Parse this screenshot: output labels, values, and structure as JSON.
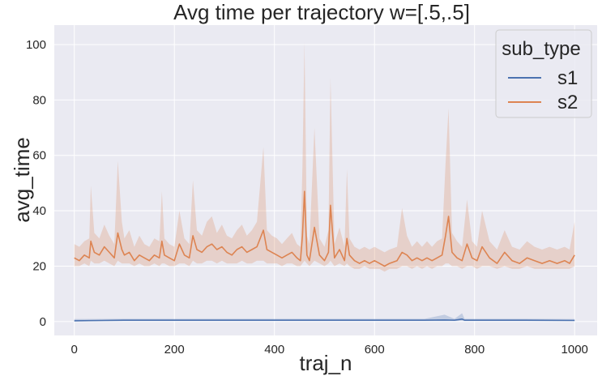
{
  "chart_data": {
    "type": "line",
    "title": "Avg time per trajectory w=[.5,.5]",
    "xlabel": "traj_n",
    "ylabel": "avg_time",
    "xlim": [
      -40,
      1045
    ],
    "ylim": [
      -5,
      107
    ],
    "x_ticks": [
      0,
      200,
      400,
      600,
      800,
      1000
    ],
    "y_ticks": [
      0,
      20,
      40,
      60,
      80,
      100
    ],
    "grid": true,
    "legend": {
      "title": "sub_type",
      "placement": "top-right"
    },
    "series": [
      {
        "name": "s1",
        "color": "#4c72b0",
        "x": [
          0,
          100,
          200,
          300,
          400,
          500,
          600,
          700,
          740,
          760,
          775,
          780,
          800,
          900,
          1000
        ],
        "y": [
          0.3,
          0.5,
          0.5,
          0.5,
          0.5,
          0.5,
          0.5,
          0.5,
          0.6,
          0.5,
          0.9,
          0.5,
          0.5,
          0.5,
          0.4
        ],
        "band_low": [
          0.1,
          0.2,
          0.2,
          0.2,
          0.2,
          0.2,
          0.2,
          0.2,
          0.2,
          0.2,
          0.3,
          0.2,
          0.2,
          0.2,
          0.2
        ],
        "band_high": [
          0.9,
          1.0,
          1.0,
          1.0,
          1.0,
          1.0,
          1.0,
          1.0,
          2.5,
          1.0,
          3.0,
          1.0,
          1.0,
          1.0,
          0.9
        ]
      },
      {
        "name": "s2",
        "color": "#dd8452",
        "x": [
          0,
          10,
          20,
          30,
          33,
          40,
          50,
          60,
          70,
          80,
          87,
          95,
          100,
          110,
          120,
          130,
          140,
          150,
          160,
          170,
          175,
          180,
          190,
          200,
          210,
          220,
          230,
          237,
          245,
          255,
          265,
          275,
          285,
          295,
          305,
          315,
          325,
          335,
          345,
          355,
          365,
          378,
          385,
          395,
          405,
          415,
          425,
          435,
          445,
          452,
          456,
          460,
          465,
          470,
          480,
          490,
          500,
          508,
          512,
          520,
          530,
          540,
          545,
          550,
          560,
          570,
          580,
          590,
          600,
          610,
          620,
          630,
          645,
          655,
          665,
          675,
          685,
          695,
          705,
          715,
          725,
          735,
          742,
          748,
          755,
          765,
          775,
          785,
          795,
          805,
          815,
          830,
          845,
          860,
          875,
          890,
          905,
          920,
          935,
          950,
          965,
          980,
          990,
          1000
        ],
        "y": [
          23,
          22,
          24,
          23,
          29,
          25,
          24,
          27,
          25,
          23,
          32,
          26,
          24,
          25,
          22,
          24,
          23,
          22,
          24,
          23,
          29,
          24,
          23,
          22,
          28,
          24,
          23,
          31,
          26,
          25,
          27,
          28,
          26,
          27,
          25,
          24,
          26,
          27,
          25,
          26,
          27,
          33,
          26,
          25,
          24,
          23,
          24,
          25,
          23,
          22,
          31,
          47,
          24,
          22,
          34,
          24,
          22,
          25,
          42,
          23,
          26,
          22,
          30,
          24,
          22,
          21,
          22,
          21,
          22,
          21,
          20,
          21,
          22,
          25,
          24,
          22,
          23,
          22,
          23,
          22,
          23,
          24,
          31,
          38,
          25,
          23,
          22,
          28,
          23,
          22,
          27,
          23,
          21,
          25,
          22,
          21,
          23,
          22,
          21,
          22,
          21,
          22,
          21,
          24
        ],
        "band_low": [
          20,
          20,
          21,
          20,
          22,
          21,
          21,
          22,
          21,
          20,
          22,
          21,
          21,
          21,
          20,
          21,
          20,
          20,
          21,
          20,
          21,
          21,
          20,
          20,
          21,
          21,
          20,
          22,
          21,
          21,
          22,
          22,
          21,
          22,
          21,
          21,
          21,
          22,
          21,
          21,
          22,
          22,
          21,
          21,
          21,
          20,
          21,
          21,
          20,
          20,
          21,
          22,
          21,
          20,
          22,
          21,
          20,
          21,
          22,
          20,
          21,
          20,
          21,
          20,
          19,
          19,
          20,
          19,
          19,
          19,
          18,
          19,
          19,
          20,
          20,
          19,
          20,
          19,
          20,
          19,
          20,
          20,
          21,
          21,
          20,
          20,
          19,
          20,
          20,
          19,
          20,
          20,
          19,
          20,
          19,
          19,
          20,
          19,
          19,
          19,
          19,
          19,
          19,
          20
        ],
        "band_high": [
          28,
          27,
          29,
          30,
          49,
          32,
          30,
          35,
          31,
          28,
          58,
          36,
          30,
          33,
          27,
          31,
          28,
          27,
          30,
          29,
          47,
          30,
          28,
          27,
          40,
          30,
          28,
          51,
          33,
          31,
          36,
          38,
          32,
          35,
          31,
          30,
          33,
          35,
          31,
          33,
          36,
          63,
          33,
          31,
          30,
          28,
          30,
          32,
          28,
          27,
          56,
          101,
          31,
          28,
          70,
          30,
          27,
          33,
          88,
          28,
          34,
          27,
          55,
          30,
          27,
          26,
          27,
          26,
          27,
          26,
          25,
          26,
          27,
          41,
          31,
          27,
          29,
          27,
          29,
          27,
          29,
          30,
          57,
          77,
          32,
          29,
          27,
          44,
          29,
          27,
          40,
          29,
          26,
          33,
          27,
          26,
          29,
          27,
          26,
          27,
          26,
          27,
          26,
          36
        ]
      }
    ]
  }
}
